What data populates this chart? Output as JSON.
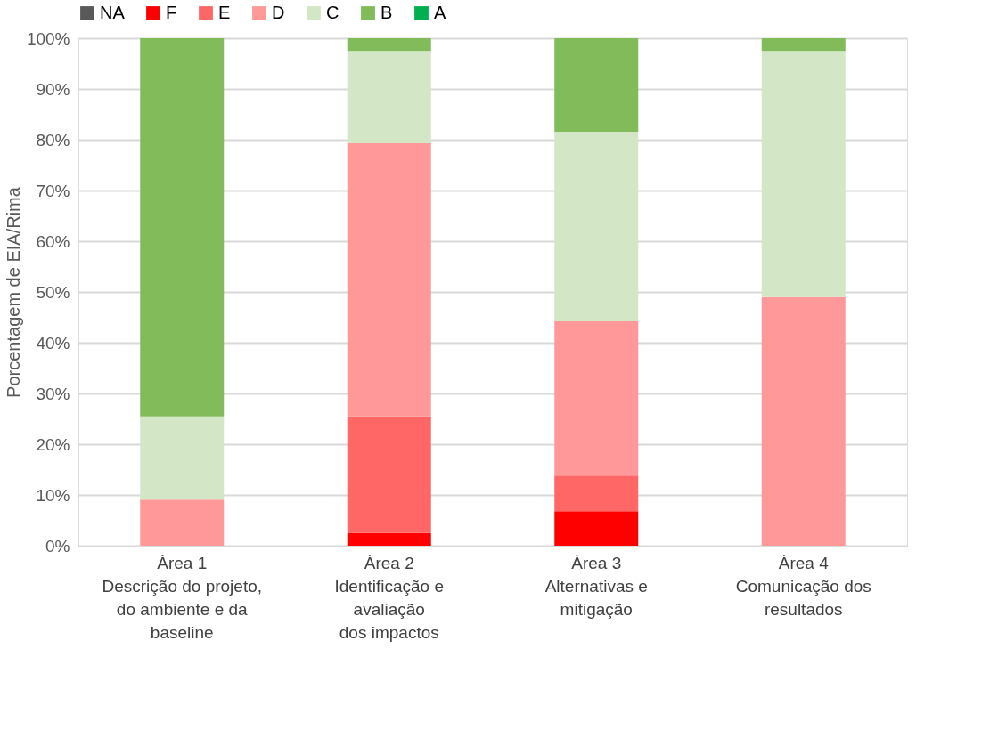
{
  "chart_data": {
    "type": "bar",
    "stacked": true,
    "ylabel": "Porcentagem de EIA/Rima",
    "categories": [
      "Área 1\nDescrição do projeto,\ndo ambiente e da\nbaseline",
      "Área 2\nIdentificação e\navaliação\ndos impactos",
      "Área 3\nAlternativas e\nmitigação",
      "Área 4\nComunicação dos\nresultados"
    ],
    "series": [
      {
        "name": "NA",
        "color": "#595959",
        "values": [
          0,
          0,
          0,
          0
        ]
      },
      {
        "name": "F",
        "color": "#ff0000",
        "values": [
          0,
          2.5,
          6.8,
          0
        ]
      },
      {
        "name": "E",
        "color": "#ff6666",
        "values": [
          0,
          23,
          7,
          0
        ]
      },
      {
        "name": "D",
        "color": "#ff9999",
        "values": [
          9.1,
          53.8,
          30.4,
          49
        ]
      },
      {
        "name": "C",
        "color": "#d3e6c5",
        "values": [
          16.4,
          18.2,
          37.4,
          48.5
        ]
      },
      {
        "name": "B",
        "color": "#82bb5a",
        "values": [
          74.5,
          2.5,
          18.4,
          2.5
        ]
      },
      {
        "name": "A",
        "color": "#00b050",
        "values": [
          0,
          0,
          0,
          0
        ]
      }
    ],
    "ylim": [
      0,
      100
    ],
    "yticks": [
      {
        "value": 0,
        "label": "0%"
      },
      {
        "value": 10,
        "label": "10%"
      },
      {
        "value": 20,
        "label": "20%"
      },
      {
        "value": 30,
        "label": "30%"
      },
      {
        "value": 40,
        "label": "40%"
      },
      {
        "value": 50,
        "label": "50%"
      },
      {
        "value": 60,
        "label": "60%"
      },
      {
        "value": 70,
        "label": "70%"
      },
      {
        "value": 80,
        "label": "80%"
      },
      {
        "value": 90,
        "label": "90%"
      },
      {
        "value": 100,
        "label": "100%"
      }
    ],
    "grid": "y",
    "legend": "top"
  }
}
